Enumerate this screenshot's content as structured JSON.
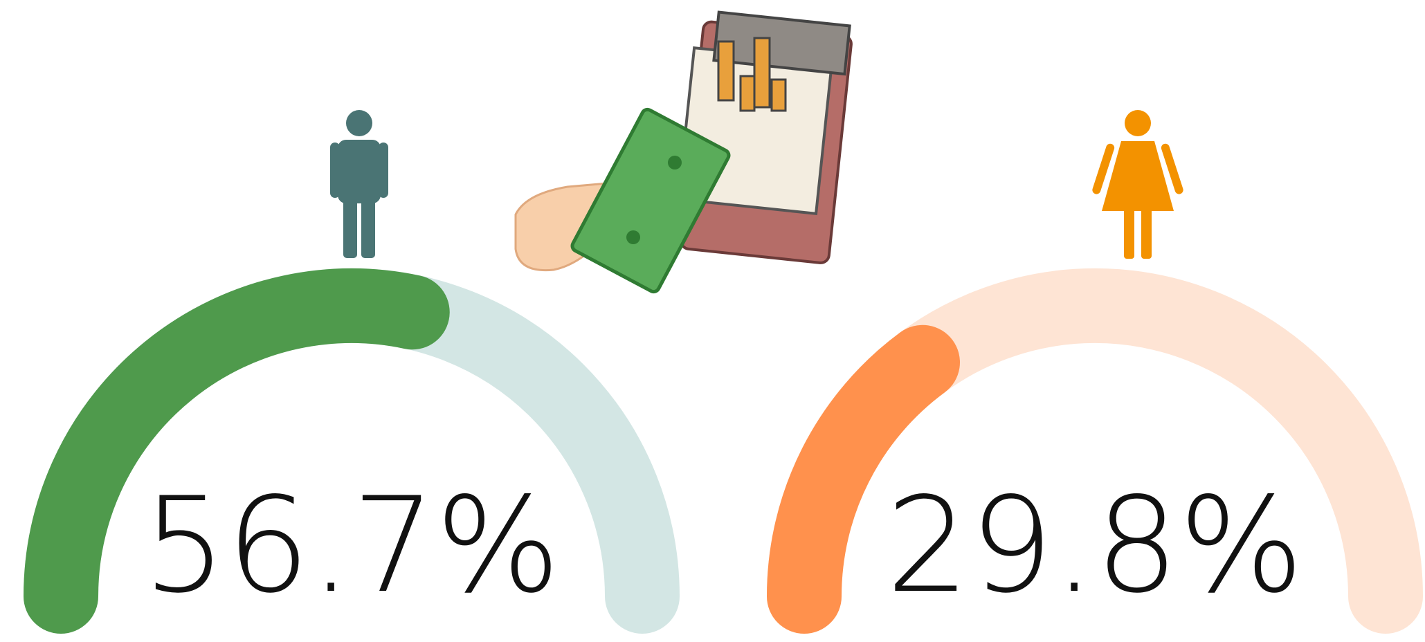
{
  "chart_data": [
    {
      "type": "gauge",
      "values": [
        56.7
      ],
      "value_labels": [
        "56.7%"
      ],
      "ylim": [
        0,
        100
      ],
      "color": "#4f9a4c",
      "track_color": "#d3e6e4"
    },
    {
      "type": "gauge",
      "values": [
        29.8
      ],
      "value_labels": [
        "29.8%"
      ],
      "ylim": [
        0,
        100
      ],
      "color": "#ff914d",
      "track_color": "#fee4d4"
    }
  ]
}
